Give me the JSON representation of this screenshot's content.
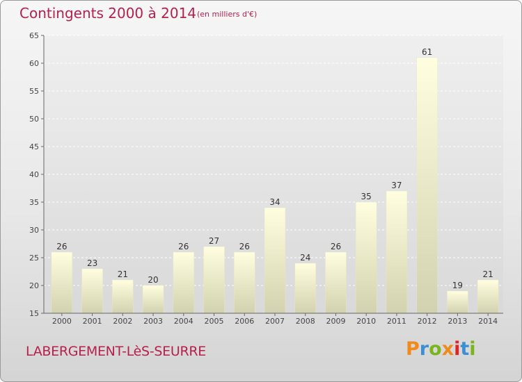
{
  "header": {
    "title": "Contingents 2000 à 2014",
    "subtitle": "(en milliers d'€)"
  },
  "footer": {
    "commune": "LABERGEMENT-LèS-SEURRE",
    "logo_text": "Proxiti",
    "logo_colors": [
      "#f08a1c",
      "#3d8fd4",
      "#7ab51d",
      "#f08a1c",
      "#e02424",
      "#3d8fd4",
      "#7ab51d"
    ]
  },
  "chart_data": {
    "type": "bar",
    "title": "Contingents 2000 à 2014",
    "subtitle": "(en milliers d'€)",
    "categories": [
      "2000",
      "2001",
      "2002",
      "2003",
      "2004",
      "2005",
      "2006",
      "2007",
      "2008",
      "2009",
      "2010",
      "2011",
      "2012",
      "2013",
      "2014"
    ],
    "values": [
      26,
      23,
      21,
      20,
      26,
      27,
      26,
      34,
      24,
      26,
      35,
      37,
      61,
      19,
      21
    ],
    "ylim": [
      15,
      65
    ],
    "yticks": [
      15,
      20,
      25,
      30,
      35,
      40,
      45,
      50,
      55,
      60,
      65
    ],
    "grid": true,
    "bar_color_top": "#ffffe0",
    "bar_color_bottom": "#d2d2b0"
  }
}
